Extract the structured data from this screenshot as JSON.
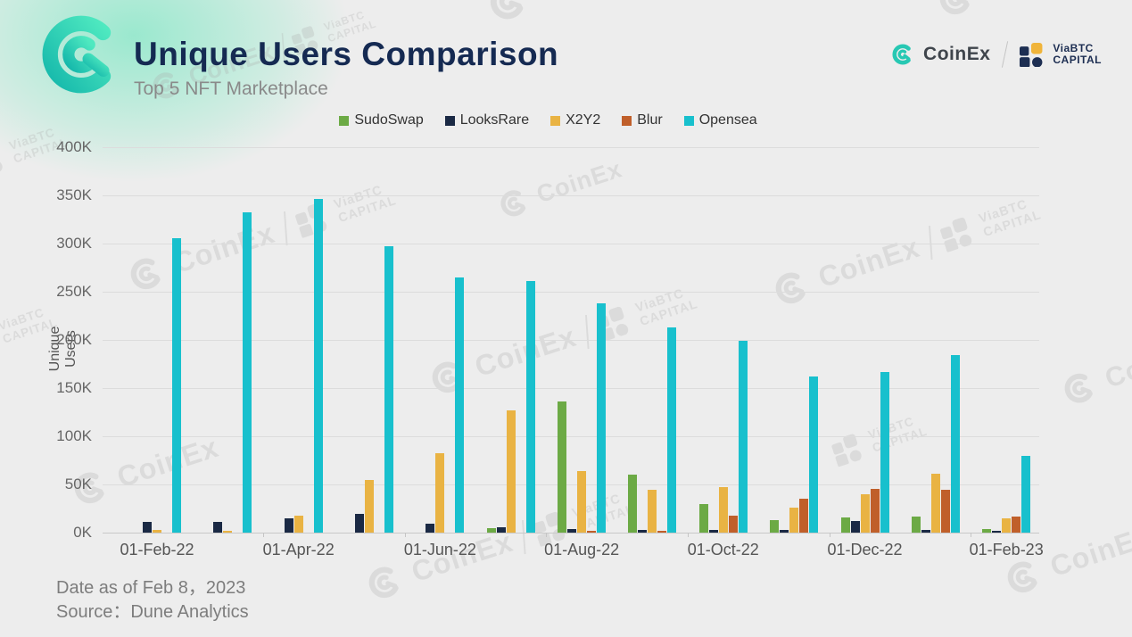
{
  "header": {
    "title": "Unique Users Comparison",
    "subtitle": "Top 5 NFT Marketplace"
  },
  "brand": {
    "coinex": "CoinEx",
    "viabtc_line1": "ViaBTC",
    "viabtc_line2": "CAPITAL"
  },
  "footer": {
    "date_note": "Date as of Feb 8，2023",
    "source_note": "Source：Dune Analytics"
  },
  "chart_data": {
    "type": "bar",
    "title": "Unique Users Comparison",
    "subtitle": "Top 5 NFT Marketplace",
    "xlabel": "",
    "ylabel": "Unique Users",
    "ylim": [
      0,
      400000
    ],
    "grid": true,
    "legend_position": "top-center",
    "y_tick_labels": [
      "400K",
      "350K",
      "300K",
      "250K",
      "200K",
      "150K",
      "100K",
      "50K",
      "0K"
    ],
    "categories": [
      "01-Feb-22",
      "01-Mar-22",
      "01-Apr-22",
      "01-May-22",
      "01-Jun-22",
      "01-Jul-22",
      "01-Aug-22",
      "01-Sep-22",
      "01-Oct-22",
      "01-Nov-22",
      "01-Dec-22",
      "01-Jan-23",
      "01-Feb-23"
    ],
    "x_tick_labels_shown": [
      "01-Feb-22",
      "01-Apr-22",
      "01-Jun-22",
      "01-Aug-22",
      "01-Oct-22",
      "01-Dec-22",
      "01-Feb-23"
    ],
    "unit": "unique users",
    "series": [
      {
        "name": "SudoSwap",
        "color": "#6caa45",
        "values": [
          0,
          0,
          0,
          0,
          0,
          5000,
          136000,
          60000,
          30000,
          13000,
          16000,
          17000,
          4000
        ]
      },
      {
        "name": "LooksRare",
        "color": "#1a2944",
        "values": [
          11000,
          11000,
          15000,
          19000,
          9000,
          6000,
          4000,
          3000,
          3000,
          3000,
          12000,
          3000,
          1000
        ]
      },
      {
        "name": "X2Y2",
        "color": "#e9b343",
        "values": [
          3000,
          2000,
          18000,
          55000,
          82000,
          127000,
          64000,
          44000,
          47000,
          26000,
          40000,
          61000,
          15000
        ]
      },
      {
        "name": "Blur",
        "color": "#c05f2a",
        "values": [
          0,
          0,
          0,
          0,
          0,
          0,
          1000,
          1000,
          18000,
          35000,
          45000,
          44000,
          17000
        ]
      },
      {
        "name": "Opensea",
        "color": "#18c0cd",
        "values": [
          306000,
          332000,
          346000,
          297000,
          265000,
          261000,
          238000,
          213000,
          199000,
          162000,
          167000,
          184000,
          80000
        ]
      }
    ]
  }
}
